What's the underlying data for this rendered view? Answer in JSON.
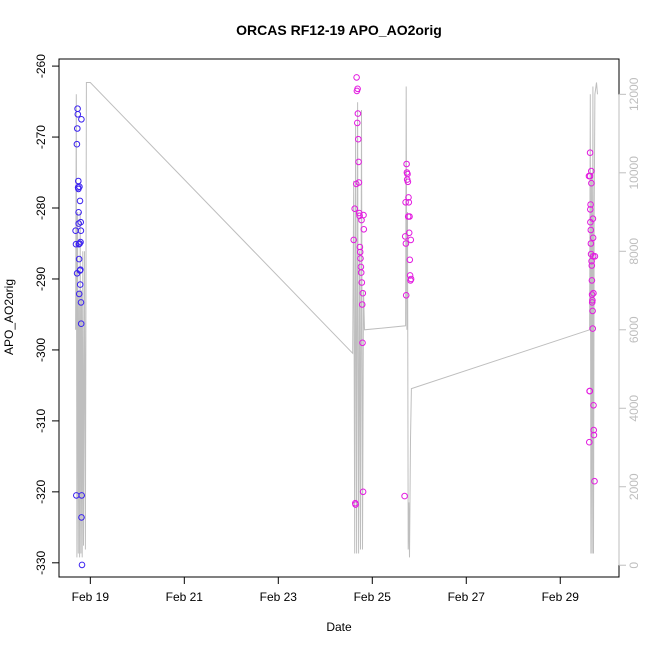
{
  "chart_data": {
    "type": "scatter",
    "title": "ORCAS RF12-19 APO_AO2orig",
    "xlabel": "Date",
    "ylabel": "APO_AO2orig",
    "x_range": [
      "2016-02-18 08:00",
      "2016-03-01 06:00"
    ],
    "x_ticks": [
      {
        "date": "2016-02-19",
        "label": "Feb 19"
      },
      {
        "date": "2016-02-21",
        "label": "Feb 21"
      },
      {
        "date": "2016-02-23",
        "label": "Feb 23"
      },
      {
        "date": "2016-02-25",
        "label": "Feb 25"
      },
      {
        "date": "2016-02-27",
        "label": "Feb 27"
      },
      {
        "date": "2016-02-29",
        "label": "Feb 29"
      }
    ],
    "ylim": [
      -332,
      -259
    ],
    "y_ticks": [
      -330,
      -320,
      -310,
      -300,
      -290,
      -280,
      -270,
      -260
    ],
    "y2lim": [
      -300,
      12900
    ],
    "y2_ticks": [
      0,
      2000,
      4000,
      6000,
      8000,
      10000,
      12000
    ],
    "grid": false,
    "colors": {
      "early": "#3b22f0",
      "late": "#e31ae0",
      "altitude": "#bebebe"
    },
    "altitude_trace": [
      [
        "2016-02-18 16:30",
        6000
      ],
      [
        "2016-02-18 16:50",
        12000
      ],
      [
        "2016-02-18 17:10",
        200
      ],
      [
        "2016-02-18 17:30",
        9000
      ],
      [
        "2016-02-18 17:50",
        300
      ],
      [
        "2016-02-18 18:10",
        7000
      ],
      [
        "2016-02-18 18:30",
        200
      ],
      [
        "2016-02-18 18:50",
        9000
      ],
      [
        "2016-02-18 19:10",
        300
      ],
      [
        "2016-02-18 19:30",
        7000
      ],
      [
        "2016-02-18 19:50",
        200
      ],
      [
        "2016-02-18 20:10",
        8000
      ],
      [
        "2016-02-18 20:30",
        500
      ],
      [
        "2016-02-18 21:00",
        8000
      ],
      [
        "2016-02-18 21:30",
        400
      ],
      [
        "2016-02-18 22:00",
        12300
      ],
      [
        "2016-02-19 00:00",
        12300
      ],
      [
        "2016-02-24 14:00",
        5400
      ],
      [
        "2016-02-24 14:30",
        9800
      ],
      [
        "2016-02-24 15:00",
        300
      ],
      [
        "2016-02-24 15:30",
        11200
      ],
      [
        "2016-02-24 16:00",
        300
      ],
      [
        "2016-02-24 16:30",
        11800
      ],
      [
        "2016-02-24 17:00",
        300
      ],
      [
        "2016-02-24 17:30",
        8000
      ],
      [
        "2016-02-24 18:00",
        400
      ],
      [
        "2016-02-24 18:30",
        11600
      ],
      [
        "2016-02-24 19:00",
        400
      ],
      [
        "2016-02-24 19:30",
        7000
      ],
      [
        "2016-02-24 20:00",
        6000
      ],
      [
        "2016-02-25 17:00",
        6100
      ],
      [
        "2016-02-25 17:20",
        12200
      ],
      [
        "2016-02-25 17:40",
        6000
      ],
      [
        "2016-02-25 18:00",
        9000
      ],
      [
        "2016-02-25 18:20",
        400
      ],
      [
        "2016-02-25 18:40",
        1600
      ],
      [
        "2016-02-25 19:00",
        200
      ],
      [
        "2016-02-25 19:30",
        3200
      ],
      [
        "2016-02-25 20:00",
        4500
      ],
      [
        "2016-02-29 15:00",
        6000
      ],
      [
        "2016-02-29 15:20",
        12000
      ],
      [
        "2016-02-29 15:40",
        300
      ],
      [
        "2016-02-29 16:00",
        10000
      ],
      [
        "2016-02-29 16:20",
        300
      ],
      [
        "2016-02-29 16:40",
        12200
      ],
      [
        "2016-02-29 17:00",
        300
      ],
      [
        "2016-02-29 17:20",
        9000
      ],
      [
        "2016-02-29 17:40",
        12000
      ],
      [
        "2016-02-29 18:30",
        12300
      ],
      [
        "2016-02-29 19:00",
        12000
      ]
    ],
    "series": [
      {
        "color": "#3b22f0",
        "points": [
          [
            "2016-02-18 16:30",
            -283.2
          ],
          [
            "2016-02-18 16:40",
            -285.1
          ],
          [
            "2016-02-18 16:50",
            -320.5
          ],
          [
            "2016-02-18 17:10",
            -271.0
          ],
          [
            "2016-02-18 17:15",
            -289.2
          ],
          [
            "2016-02-18 17:20",
            -268.8
          ],
          [
            "2016-02-18 17:30",
            -266.0
          ],
          [
            "2016-02-18 17:35",
            -266.8
          ],
          [
            "2016-02-18 17:45",
            -277.1
          ],
          [
            "2016-02-18 17:50",
            -276.2
          ],
          [
            "2016-02-18 17:55",
            -277.3
          ],
          [
            "2016-02-18 18:00",
            -280.6
          ],
          [
            "2016-02-18 18:05",
            -282.2
          ],
          [
            "2016-02-18 18:10",
            -285.1
          ],
          [
            "2016-02-18 18:15",
            -287.2
          ],
          [
            "2016-02-18 18:20",
            -292.1
          ],
          [
            "2016-02-18 18:25",
            -277.0
          ],
          [
            "2016-02-18 18:30",
            -285.0
          ],
          [
            "2016-02-18 18:40",
            -288.8
          ],
          [
            "2016-02-18 18:45",
            -279.0
          ],
          [
            "2016-02-18 18:50",
            -290.8
          ],
          [
            "2016-02-18 18:55",
            -288.7
          ],
          [
            "2016-02-18 19:00",
            -284.8
          ],
          [
            "2016-02-18 19:05",
            -282.0
          ],
          [
            "2016-02-18 19:10",
            -283.2
          ],
          [
            "2016-02-18 19:15",
            -293.3
          ],
          [
            "2016-02-18 19:20",
            -296.3
          ],
          [
            "2016-02-18 19:25",
            -267.5
          ],
          [
            "2016-02-18 19:30",
            -323.6
          ],
          [
            "2016-02-18 19:35",
            -320.5
          ],
          [
            "2016-02-18 19:45",
            -330.3
          ]
        ]
      },
      {
        "color": "#e31ae0",
        "points": [
          [
            "2016-02-24 14:30",
            -284.5
          ],
          [
            "2016-02-24 15:00",
            -280.1
          ],
          [
            "2016-02-24 15:20",
            -321.6
          ],
          [
            "2016-02-24 15:30",
            -321.8
          ],
          [
            "2016-02-24 15:50",
            -276.6
          ],
          [
            "2016-02-24 16:00",
            -261.6
          ],
          [
            "2016-02-24 16:10",
            -263.5
          ],
          [
            "2016-02-24 16:20",
            -268.0
          ],
          [
            "2016-02-24 16:30",
            -263.2
          ],
          [
            "2016-02-24 16:40",
            -266.7
          ],
          [
            "2016-02-24 16:50",
            -270.3
          ],
          [
            "2016-02-24 17:00",
            -273.5
          ],
          [
            "2016-02-24 17:10",
            -276.4
          ],
          [
            "2016-02-24 17:20",
            -280.7
          ],
          [
            "2016-02-24 17:30",
            -281.1
          ],
          [
            "2016-02-24 17:40",
            -285.5
          ],
          [
            "2016-02-24 17:50",
            -286.2
          ],
          [
            "2016-02-24 18:00",
            -287.1
          ],
          [
            "2016-02-24 18:10",
            -288.3
          ],
          [
            "2016-02-24 18:20",
            -289.1
          ],
          [
            "2016-02-24 18:30",
            -281.7
          ],
          [
            "2016-02-24 18:40",
            -290.5
          ],
          [
            "2016-02-24 18:50",
            -293.6
          ],
          [
            "2016-02-24 19:00",
            -299.0
          ],
          [
            "2016-02-24 19:10",
            -292.0
          ],
          [
            "2016-02-24 19:20",
            -320.0
          ],
          [
            "2016-02-24 19:30",
            -281.0
          ],
          [
            "2016-02-24 19:40",
            -283.0
          ],
          [
            "2016-02-25 16:30",
            -320.6
          ],
          [
            "2016-02-25 16:50",
            -284.0
          ],
          [
            "2016-02-25 17:00",
            -279.2
          ],
          [
            "2016-02-25 17:10",
            -285.0
          ],
          [
            "2016-02-25 17:20",
            -292.3
          ],
          [
            "2016-02-25 17:30",
            -273.8
          ],
          [
            "2016-02-25 17:40",
            -275.0
          ],
          [
            "2016-02-25 17:50",
            -276.0
          ],
          [
            "2016-02-25 18:00",
            -275.2
          ],
          [
            "2016-02-25 18:10",
            -276.3
          ],
          [
            "2016-02-25 18:20",
            -281.2
          ],
          [
            "2016-02-25 18:30",
            -278.5
          ],
          [
            "2016-02-25 18:40",
            -279.2
          ],
          [
            "2016-02-25 18:50",
            -283.5
          ],
          [
            "2016-02-25 19:00",
            -281.2
          ],
          [
            "2016-02-25 19:10",
            -287.3
          ],
          [
            "2016-02-25 19:20",
            -289.5
          ],
          [
            "2016-02-25 19:30",
            -290.2
          ],
          [
            "2016-02-25 19:40",
            -284.5
          ],
          [
            "2016-02-25 19:50",
            -290.0
          ],
          [
            "2016-02-29 14:40",
            -275.5
          ],
          [
            "2016-02-29 14:50",
            -313.0
          ],
          [
            "2016-02-29 15:00",
            -305.8
          ],
          [
            "2016-02-29 15:05",
            -305.8
          ],
          [
            "2016-02-29 15:10",
            -275.5
          ],
          [
            "2016-02-29 15:15",
            -272.2
          ],
          [
            "2016-02-29 15:20",
            -280.2
          ],
          [
            "2016-02-29 15:25",
            -282.0
          ],
          [
            "2016-02-29 15:30",
            -279.5
          ],
          [
            "2016-02-29 15:35",
            -283.1
          ],
          [
            "2016-02-29 15:40",
            -285.0
          ],
          [
            "2016-02-29 15:45",
            -286.5
          ],
          [
            "2016-02-29 15:50",
            -274.8
          ],
          [
            "2016-02-29 15:55",
            -276.5
          ],
          [
            "2016-02-29 16:00",
            -287.5
          ],
          [
            "2016-02-29 16:05",
            -288.1
          ],
          [
            "2016-02-29 16:10",
            -290.2
          ],
          [
            "2016-02-29 16:15",
            -292.2
          ],
          [
            "2016-02-29 16:20",
            -293.3
          ],
          [
            "2016-02-29 16:25",
            -293.0
          ],
          [
            "2016-02-29 16:30",
            -294.5
          ],
          [
            "2016-02-29 16:35",
            -297.0
          ],
          [
            "2016-02-29 16:40",
            -281.5
          ],
          [
            "2016-02-29 16:45",
            -284.2
          ],
          [
            "2016-02-29 16:50",
            -286.8
          ],
          [
            "2016-02-29 16:55",
            -292.0
          ],
          [
            "2016-02-29 17:00",
            -307.8
          ],
          [
            "2016-02-29 17:05",
            -311.3
          ],
          [
            "2016-02-29 17:10",
            -312.0
          ],
          [
            "2016-02-29 17:30",
            -318.5
          ],
          [
            "2016-02-29 17:40",
            -286.8
          ]
        ]
      }
    ]
  }
}
